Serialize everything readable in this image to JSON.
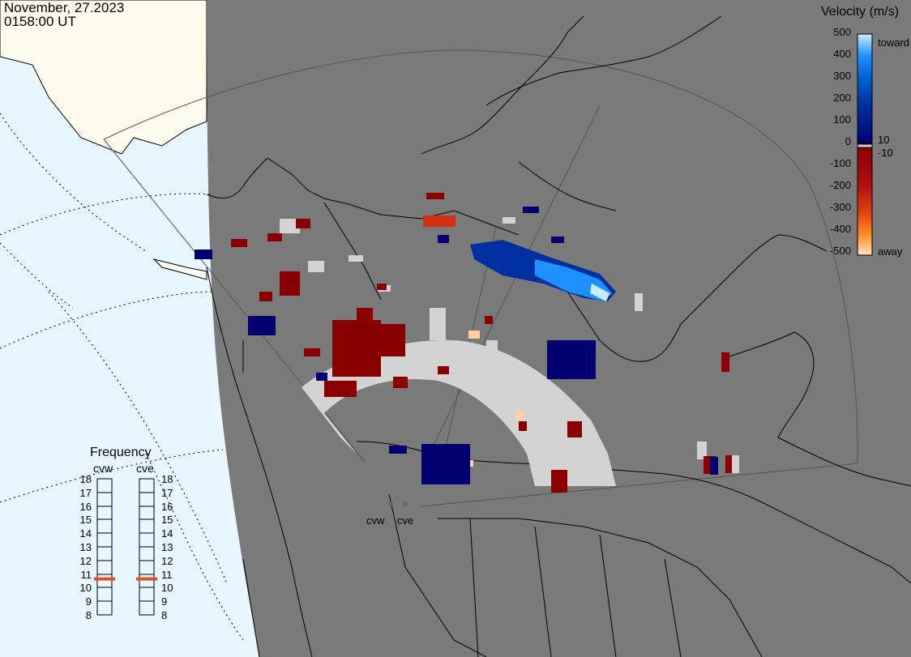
{
  "header": {
    "date": "November, 27.2023",
    "time": "0158:00 UT"
  },
  "legend": {
    "title": "Velocity (m/s)",
    "ticks": [
      "500",
      "400",
      "300",
      "200",
      "100",
      "0",
      "-100",
      "-200",
      "-300",
      "-400",
      "-500"
    ],
    "label_toward": "toward",
    "label_away": "away",
    "label_pos_threshold": "10",
    "label_neg_threshold": "-10"
  },
  "frequency": {
    "title": "Frequency",
    "radars": [
      {
        "name": "cvw",
        "value": 11
      },
      {
        "name": "cve",
        "value": 11
      }
    ],
    "scale": [
      "18",
      "17",
      "16",
      "15",
      "14",
      "13",
      "12",
      "11",
      "10",
      "9",
      "8"
    ],
    "marker_color": "#e05020"
  },
  "map": {
    "radar_labels": [
      "cvw",
      "cve"
    ],
    "colors": {
      "ocean": "#e8f6ff",
      "land_outside": "#fbfbee",
      "night_region": "#7a7a7a",
      "ground_scatter": "#d3d3d3",
      "coastline": "#000000"
    }
  },
  "colorscale": [
    "#ffe0c0",
    "#ffa040",
    "#ff7a10",
    "#e04010",
    "#b01010",
    "#8a0000",
    "#000070",
    "#0030a0",
    "#0060d0",
    "#1e90ff",
    "#70c8ff",
    "#c8ecff"
  ]
}
